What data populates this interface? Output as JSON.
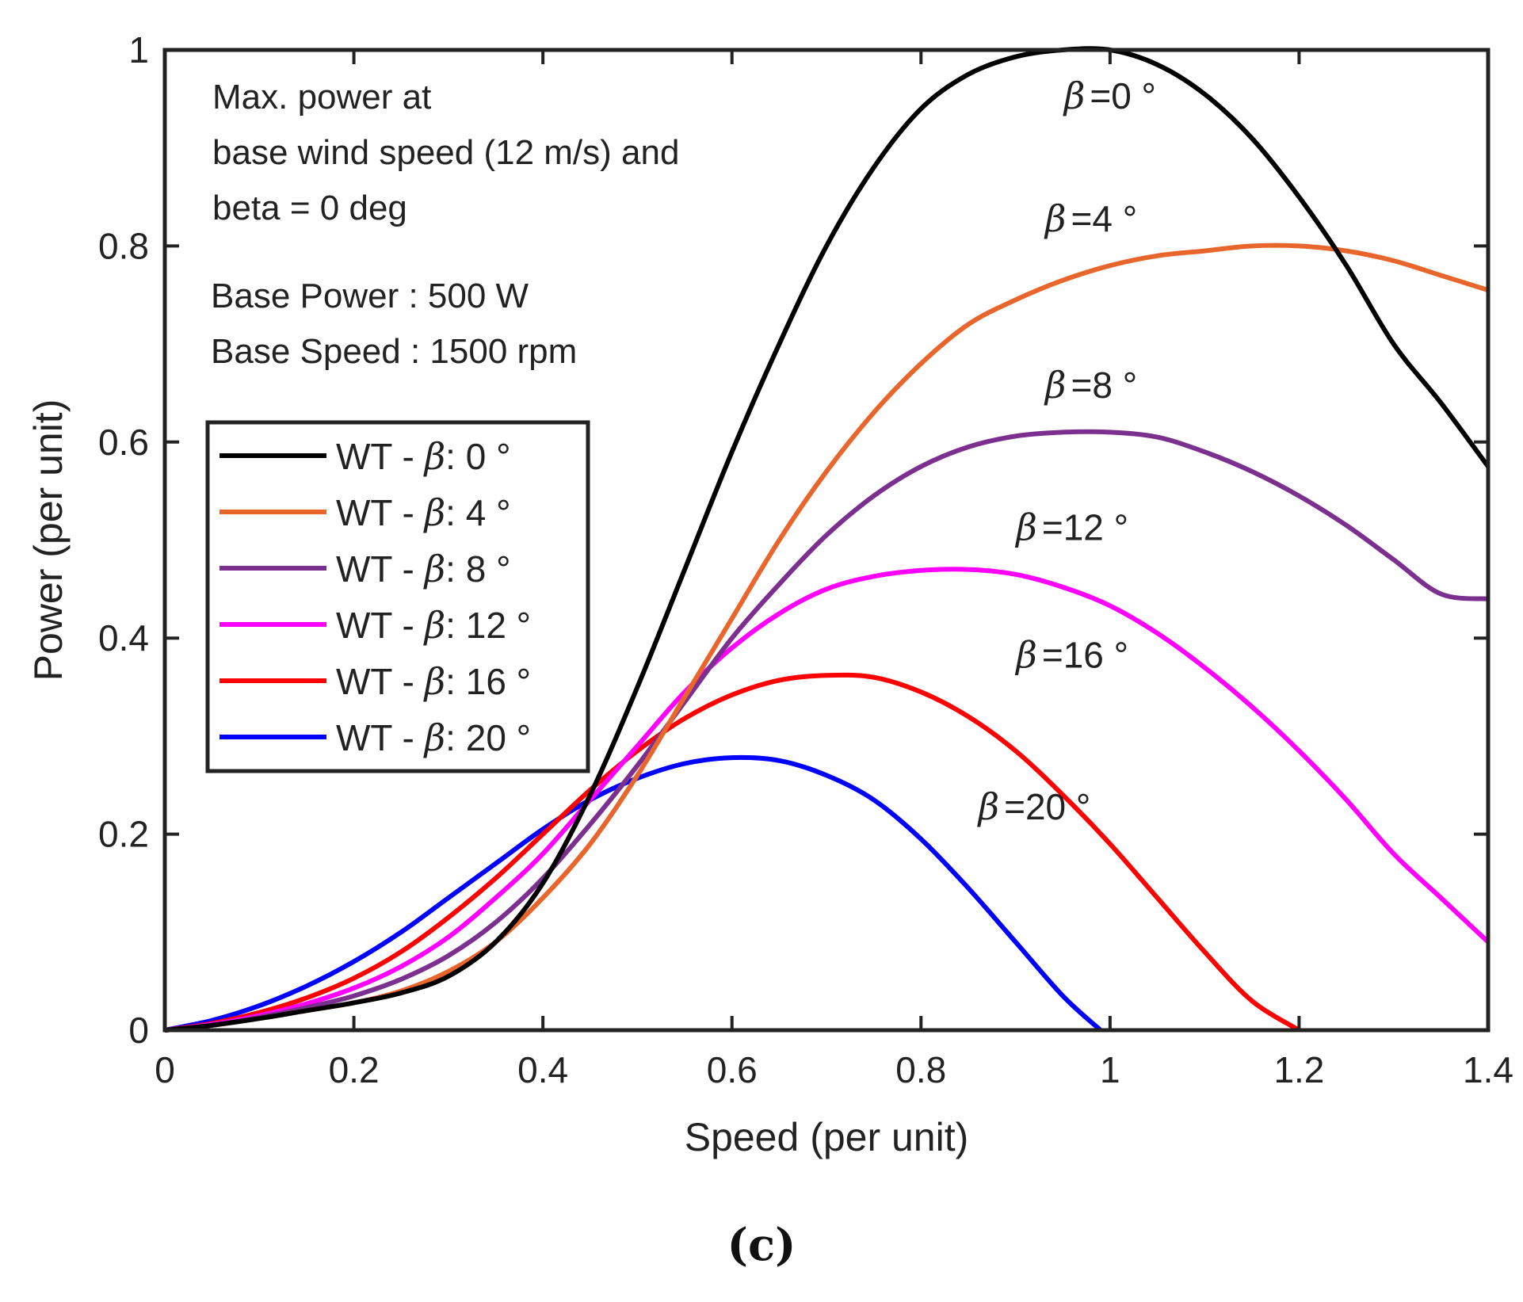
{
  "chart_data": {
    "type": "line",
    "xlabel": "Speed (per unit)",
    "ylabel": "Power (per unit)",
    "xlim": [
      0,
      1.4
    ],
    "ylim": [
      0,
      1
    ],
    "x_ticks": [
      "0",
      "0.2",
      "0.4",
      "0.6",
      "0.8",
      "1",
      "1.2",
      "1.4"
    ],
    "y_ticks": [
      "0",
      "0.2",
      "0.4",
      "0.6",
      "0.8",
      "1"
    ],
    "grid": false,
    "legend_position": "middle-left",
    "annotation_lines": [
      "Max. power at",
      "base wind speed (12 m/s) and",
      "beta = 0 deg"
    ],
    "base_info": [
      "Base Power : 500 W",
      "Base Speed : 1500 rpm"
    ],
    "series": [
      {
        "name": "WT - β: 0 °",
        "legend_prefix": "WT - ",
        "beta_symbol": "β",
        "legend_suffix": ": 0 °",
        "color": "#000000",
        "label": "=0 °",
        "label_at": [
          1.0,
          0.94
        ],
        "x": [
          0,
          0.05,
          0.1,
          0.15,
          0.2,
          0.25,
          0.3,
          0.35,
          0.4,
          0.45,
          0.5,
          0.55,
          0.6,
          0.65,
          0.7,
          0.75,
          0.8,
          0.85,
          0.9,
          0.95,
          1.0,
          1.05,
          1.1,
          1.15,
          1.2,
          1.25,
          1.3,
          1.35,
          1.4
        ],
        "values": [
          0,
          0.005,
          0.012,
          0.02,
          0.028,
          0.038,
          0.055,
          0.09,
          0.15,
          0.24,
          0.35,
          0.47,
          0.59,
          0.7,
          0.8,
          0.88,
          0.94,
          0.975,
          0.993,
          1.0,
          1.0,
          0.985,
          0.955,
          0.91,
          0.85,
          0.78,
          0.7,
          0.64,
          0.575
        ]
      },
      {
        "name": "WT - β: 4 °",
        "legend_prefix": "WT - ",
        "beta_symbol": "β",
        "legend_suffix": ": 4 °",
        "color": "#e8662c",
        "label": "=4 °",
        "label_at": [
          0.98,
          0.815
        ],
        "x": [
          0,
          0.05,
          0.1,
          0.15,
          0.2,
          0.25,
          0.3,
          0.35,
          0.4,
          0.45,
          0.5,
          0.55,
          0.6,
          0.65,
          0.7,
          0.75,
          0.8,
          0.85,
          0.9,
          0.95,
          1.0,
          1.05,
          1.1,
          1.15,
          1.2,
          1.25,
          1.3,
          1.35,
          1.4
        ],
        "values": [
          0,
          0.005,
          0.012,
          0.02,
          0.028,
          0.04,
          0.06,
          0.09,
          0.135,
          0.19,
          0.26,
          0.34,
          0.42,
          0.5,
          0.57,
          0.63,
          0.68,
          0.72,
          0.745,
          0.765,
          0.78,
          0.79,
          0.795,
          0.8,
          0.8,
          0.795,
          0.785,
          0.77,
          0.755
        ]
      },
      {
        "name": "WT - β: 8 °",
        "legend_prefix": "WT - ",
        "beta_symbol": "β",
        "legend_suffix": ": 8 °",
        "color": "#7b2f8e",
        "label": "=8 °",
        "label_at": [
          0.98,
          0.645
        ],
        "x": [
          0,
          0.05,
          0.1,
          0.15,
          0.2,
          0.25,
          0.3,
          0.35,
          0.4,
          0.45,
          0.5,
          0.55,
          0.6,
          0.65,
          0.7,
          0.75,
          0.8,
          0.85,
          0.9,
          0.95,
          1.0,
          1.05,
          1.1,
          1.15,
          1.2,
          1.25,
          1.3,
          1.35,
          1.4
        ],
        "values": [
          0,
          0.005,
          0.013,
          0.023,
          0.035,
          0.052,
          0.076,
          0.11,
          0.155,
          0.21,
          0.27,
          0.335,
          0.4,
          0.455,
          0.505,
          0.545,
          0.575,
          0.595,
          0.606,
          0.61,
          0.61,
          0.605,
          0.59,
          0.57,
          0.545,
          0.515,
          0.48,
          0.445,
          0.44
        ]
      },
      {
        "name": "WT - β: 12 °",
        "legend_prefix": "WT - ",
        "beta_symbol": "β",
        "legend_suffix": ": 12 °",
        "color": "#ff00ff",
        "label": "=12 °",
        "label_at": [
          0.96,
          0.5
        ],
        "x": [
          0,
          0.05,
          0.1,
          0.15,
          0.2,
          0.25,
          0.3,
          0.35,
          0.4,
          0.45,
          0.5,
          0.55,
          0.6,
          0.65,
          0.7,
          0.75,
          0.8,
          0.85,
          0.9,
          0.95,
          1.0,
          1.05,
          1.1,
          1.15,
          1.2,
          1.25,
          1.3,
          1.35,
          1.4
        ],
        "values": [
          0,
          0.006,
          0.015,
          0.027,
          0.043,
          0.065,
          0.095,
          0.135,
          0.18,
          0.235,
          0.29,
          0.345,
          0.39,
          0.425,
          0.45,
          0.463,
          0.469,
          0.47,
          0.465,
          0.452,
          0.433,
          0.405,
          0.37,
          0.33,
          0.285,
          0.235,
          0.18,
          0.135,
          0.09
        ]
      },
      {
        "name": "WT - β: 16 °",
        "legend_prefix": "WT - ",
        "beta_symbol": "β",
        "legend_suffix": ": 16 °",
        "color": "#ff0000",
        "label": "=16 °",
        "label_at": [
          0.96,
          0.37
        ],
        "x": [
          0,
          0.05,
          0.1,
          0.15,
          0.2,
          0.25,
          0.3,
          0.35,
          0.4,
          0.45,
          0.5,
          0.55,
          0.6,
          0.65,
          0.7,
          0.75,
          0.8,
          0.85,
          0.9,
          0.95,
          1.0,
          1.05,
          1.1,
          1.15,
          1.2
        ],
        "values": [
          0,
          0.007,
          0.018,
          0.033,
          0.053,
          0.08,
          0.115,
          0.155,
          0.2,
          0.245,
          0.285,
          0.318,
          0.342,
          0.357,
          0.362,
          0.36,
          0.345,
          0.32,
          0.285,
          0.24,
          0.19,
          0.135,
          0.08,
          0.03,
          0.0
        ]
      },
      {
        "name": "WT - β: 20 °",
        "legend_prefix": "WT - ",
        "beta_symbol": "β",
        "legend_suffix": ": 20 °",
        "color": "#0000ff",
        "label": "=20 °",
        "label_at": [
          0.92,
          0.215
        ],
        "x": [
          0,
          0.05,
          0.1,
          0.15,
          0.2,
          0.25,
          0.3,
          0.35,
          0.4,
          0.45,
          0.5,
          0.55,
          0.6,
          0.65,
          0.7,
          0.75,
          0.8,
          0.85,
          0.9,
          0.95,
          0.99
        ],
        "values": [
          0,
          0.01,
          0.025,
          0.045,
          0.07,
          0.1,
          0.135,
          0.17,
          0.205,
          0.235,
          0.257,
          0.272,
          0.278,
          0.275,
          0.26,
          0.235,
          0.195,
          0.145,
          0.09,
          0.035,
          0.0
        ]
      }
    ]
  },
  "caption": "(c)"
}
